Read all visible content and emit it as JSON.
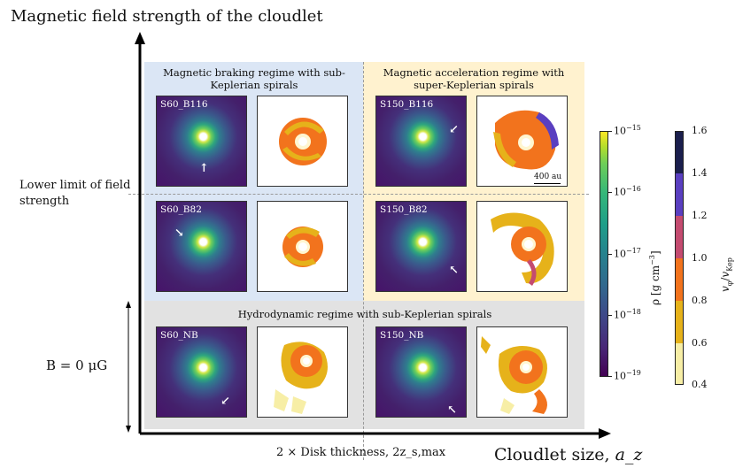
{
  "axes": {
    "y_title": "Magnetic field strength of the cloudlet",
    "x_title_prefix": "Cloudlet size, ",
    "x_title_symbol": "a_z",
    "disk_thickness": "2 × Disk thickness, 2z_s,max",
    "lower_limit": "Lower limit of field strength",
    "b_zero": "B = 0 μG"
  },
  "regions": {
    "braking": "Magnetic braking regime with sub-Keplerian spirals",
    "acceleration": "Magnetic acceleration regime with super-Keplerian spirals",
    "hydro": "Hydrodynamic regime with sub-Keplerian spirals"
  },
  "panels": [
    {
      "label": "S60_B116"
    },
    {
      "label": "S150_B116"
    },
    {
      "label": "S60_B82"
    },
    {
      "label": "S150_B82"
    },
    {
      "label": "S60_NB"
    },
    {
      "label": "S150_NB"
    }
  ],
  "scale_bar": "400 au",
  "colorbars": {
    "rho": {
      "label": "ρ [g cm^-3]",
      "ticks": [
        "10^-15",
        "10^-16",
        "10^-17",
        "10^-18",
        "10^-19"
      ],
      "colormap": "viridis"
    },
    "velocity": {
      "label": "v_φ/v_Kep",
      "ticks": [
        "1.6",
        "1.4",
        "1.2",
        "1.0",
        "0.8",
        "0.6",
        "0.4"
      ],
      "colors": [
        "#1b1f4d",
        "#5a3fc0",
        "#c44b70",
        "#f2731d",
        "#e6b21a",
        "#f7eea6"
      ]
    }
  }
}
